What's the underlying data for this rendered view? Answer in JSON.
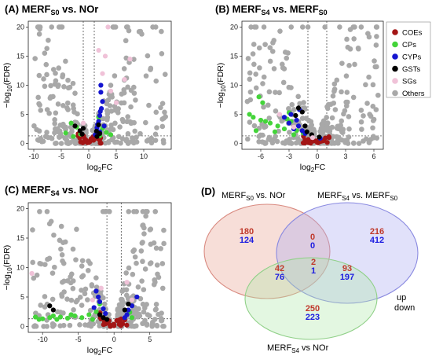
{
  "chart_data": [
    {
      "type": "scatter",
      "id": "A",
      "title": "(A) MERF",
      "title_sub": "S0",
      "title_rest": " vs. NOr",
      "xlabel": "log",
      "xlabel_sub": "2",
      "xlabel_rest": "FC",
      "ylabel": "−log",
      "ylabel_sub": "10",
      "ylabel_rest": "(FDR)",
      "xlim": [
        -11,
        15
      ],
      "ylim": [
        -1,
        21
      ],
      "xticks": [
        -10,
        -5,
        0,
        5,
        10
      ],
      "yticks": [
        0,
        5,
        10,
        15,
        20
      ],
      "vlines": [
        -1,
        1
      ],
      "hline": 1.3,
      "seed": 11,
      "groups": [
        {
          "category": "Others",
          "shape": "vee",
          "x_left": [
            -10,
            -0.5
          ],
          "x_right": [
            0.5,
            14
          ],
          "count": 320,
          "max_y": 20
        },
        {
          "category": "COEs",
          "cluster": true,
          "x_range": [
            -2,
            2.5
          ],
          "count": 28,
          "max_y": 2.2
        },
        {
          "category": "CPs",
          "points": [
            [
              -3.2,
              3.5
            ],
            [
              -2.8,
              1.2
            ],
            [
              -1.5,
              1.6
            ],
            [
              2.5,
              2.6
            ],
            [
              3.2,
              1.9
            ],
            [
              1.8,
              4.5
            ],
            [
              -2.2,
              2.8
            ],
            [
              4,
              1.5
            ],
            [
              -4.2,
              1.8
            ],
            [
              2,
              1.3
            ]
          ]
        },
        {
          "category": "CYPs",
          "points": [
            [
              2.2,
              10
            ],
            [
              2.2,
              8.8
            ],
            [
              2.5,
              7.2
            ],
            [
              2.3,
              6
            ],
            [
              2,
              4.8
            ],
            [
              1.8,
              3.8
            ],
            [
              1.5,
              2.7
            ],
            [
              2,
              2
            ],
            [
              1.2,
              1.5
            ],
            [
              2.8,
              3
            ],
            [
              1.6,
              3.3
            ],
            [
              2.1,
              5.5
            ]
          ]
        },
        {
          "category": "GSTs",
          "points": [
            [
              -2.5,
              3
            ],
            [
              -1.6,
              2.2
            ],
            [
              -1.2,
              1.6
            ],
            [
              1.4,
              2.1
            ],
            [
              2,
              1.7
            ],
            [
              1.8,
              3.2
            ],
            [
              -1,
              2.6
            ],
            [
              1.5,
              1.2
            ]
          ]
        },
        {
          "category": "SGs",
          "points": [
            [
              1.8,
              16
            ],
            [
              3,
              15
            ],
            [
              7.5,
              14.5
            ],
            [
              2.5,
              12
            ],
            [
              6.5,
              11
            ],
            [
              4,
              9
            ],
            [
              3.5,
              20
            ],
            [
              -1,
              3.5
            ],
            [
              5,
              7
            ]
          ]
        }
      ]
    },
    {
      "type": "scatter",
      "id": "B",
      "title": "(B) MERF",
      "title_sub": "S4",
      "title_rest": " vs. MERF",
      "title_sub2": "S0",
      "xlabel": "log",
      "xlabel_sub": "2",
      "xlabel_rest": "FC",
      "ylabel": "−log",
      "ylabel_sub": "10",
      "ylabel_rest": "(FDR)",
      "xlim": [
        -8,
        7
      ],
      "ylim": [
        -1,
        21
      ],
      "xticks": [
        -6,
        -3,
        0,
        3,
        6
      ],
      "yticks": [
        0,
        5,
        10,
        15,
        20
      ],
      "vlines": [
        -1,
        1
      ],
      "hline": 1.3,
      "seed": 23,
      "groups": [
        {
          "category": "Others",
          "shape": "vee",
          "x_left": [
            -7.5,
            -0.3
          ],
          "x_right": [
            0.3,
            6.5
          ],
          "count": 300,
          "max_y": 20
        },
        {
          "category": "COEs",
          "cluster": true,
          "x_range": [
            -1.5,
            1.5
          ],
          "count": 25,
          "max_y": 1.8
        },
        {
          "category": "CPs",
          "points": [
            [
              -7.2,
              5
            ],
            [
              -6.8,
              4.5
            ],
            [
              -6,
              4
            ],
            [
              -5.5,
              3.8
            ],
            [
              -5,
              3.5
            ],
            [
              -4.2,
              3
            ],
            [
              -3.5,
              2.5
            ],
            [
              -3.2,
              4.2
            ],
            [
              -2.8,
              3.8
            ],
            [
              -2.2,
              2.2
            ],
            [
              -1.5,
              1.8
            ],
            [
              -6.5,
              2.2
            ],
            [
              -5.8,
              7
            ],
            [
              -6.2,
              8
            ],
            [
              -3,
              5.3
            ],
            [
              -4.5,
              2
            ],
            [
              -2.5,
              1.5
            ]
          ]
        },
        {
          "category": "CYPs",
          "points": [
            [
              -3.5,
              4.5
            ],
            [
              -2.8,
              5
            ],
            [
              -2.2,
              4
            ],
            [
              -2,
              3
            ],
            [
              -1.6,
              2.2
            ],
            [
              -3,
              3.5
            ],
            [
              -1.9,
              5.8
            ],
            [
              -1.3,
              1.7
            ],
            [
              0.3,
              0.9
            ],
            [
              -2.5,
              2.5
            ]
          ]
        },
        {
          "category": "GSTs",
          "points": [
            [
              -2,
              6.1
            ],
            [
              -1.6,
              5.4
            ],
            [
              -1.3,
              3
            ],
            [
              -1.1,
              2
            ],
            [
              0.2,
              1.1
            ],
            [
              -0.6,
              1.5
            ],
            [
              -2.3,
              4.8
            ]
          ]
        },
        {
          "category": "SGs",
          "points": [
            [
              -4,
              5
            ],
            [
              -2.5,
              2.8
            ],
            [
              -0.5,
              1
            ]
          ]
        }
      ]
    },
    {
      "type": "scatter",
      "id": "C",
      "title": "(C) MERF",
      "title_sub": "S4",
      "title_rest": " vs. NOr",
      "xlabel": "log",
      "xlabel_sub": "2",
      "xlabel_rest": "FC",
      "ylabel": "−log",
      "ylabel_sub": "10",
      "ylabel_rest": "(FDR)",
      "xlim": [
        -12,
        8
      ],
      "ylim": [
        -1,
        21
      ],
      "xticks": [
        -10,
        -5,
        0,
        5
      ],
      "yticks": [
        0,
        5,
        10,
        15,
        20
      ],
      "vlines": [
        -1,
        1
      ],
      "hline": 1.3,
      "seed": 37,
      "groups": [
        {
          "category": "Others",
          "shape": "vee",
          "x_left": [
            -11.5,
            -0.5
          ],
          "x_right": [
            0.5,
            7
          ],
          "count": 300,
          "max_y": 19.5
        },
        {
          "category": "COEs",
          "cluster": true,
          "x_range": [
            -2,
            2
          ],
          "count": 24,
          "max_y": 2.5
        },
        {
          "category": "CPs",
          "points": [
            [
              -11,
              1.6
            ],
            [
              -10,
              1.3
            ],
            [
              -9,
              1.5
            ],
            [
              -8,
              1.2
            ],
            [
              -7.5,
              1.6
            ],
            [
              -6.5,
              1.4
            ],
            [
              -5.5,
              1.8
            ],
            [
              -4.5,
              1.5
            ],
            [
              -3.5,
              2
            ],
            [
              -3,
              1.2
            ],
            [
              -2.5,
              2.5
            ],
            [
              -2,
              3.8
            ],
            [
              2.2,
              2.4
            ],
            [
              2.5,
              1.5
            ],
            [
              -6,
              2
            ],
            [
              -8.5,
              1.8
            ],
            [
              -10.5,
              1.2
            ]
          ]
        },
        {
          "category": "CYPs",
          "points": [
            [
              -2.5,
              6
            ],
            [
              -2.2,
              5
            ],
            [
              -2,
              4.2
            ],
            [
              -1.5,
              3
            ],
            [
              -1.2,
              2.2
            ],
            [
              2.5,
              3.5
            ],
            [
              2,
              2.8
            ],
            [
              1.8,
              2
            ],
            [
              3.2,
              5
            ],
            [
              -2.8,
              3.2
            ],
            [
              1.5,
              1.5
            ]
          ]
        },
        {
          "category": "GSTs",
          "points": [
            [
              -9,
              3.5
            ],
            [
              -8.5,
              2.8
            ],
            [
              -2,
              2
            ],
            [
              -1.5,
              1.5
            ],
            [
              1.5,
              2.8
            ],
            [
              2,
              3.8
            ],
            [
              -1,
              1.2
            ]
          ]
        },
        {
          "category": "SGs",
          "points": [
            [
              -11.5,
              9
            ],
            [
              1.8,
              7.5
            ],
            [
              -1.8,
              6.5
            ],
            [
              2.5,
              4.5
            ],
            [
              -3,
              4.5
            ]
          ]
        }
      ]
    },
    {
      "type": "venn",
      "id": "D",
      "panel_label": "(D)",
      "sets": [
        {
          "id": "s0",
          "label": "MERF",
          "label_sub": "S0",
          "label_rest": " vs. NOr",
          "fill": "#e8a090",
          "stroke": "#d98a80"
        },
        {
          "id": "s4s0",
          "label": "MERF",
          "label_sub": "S4",
          "label_rest": " vs. MERF",
          "label_sub2": "S0",
          "fill": "#a8a8f0",
          "stroke": "#8a8ae0"
        },
        {
          "id": "s4",
          "label": "MERF",
          "label_sub": "S4",
          "label_rest": " vs NOr",
          "fill": "#b0e8a8",
          "stroke": "#90d088"
        }
      ],
      "regions": [
        {
          "region": "s0_only",
          "up": 180,
          "down": 124
        },
        {
          "region": "s4s0_only",
          "up": 216,
          "down": 412
        },
        {
          "region": "s0_s4s0",
          "up": 0,
          "down": 0
        },
        {
          "region": "s0_s4",
          "up": 42,
          "down": 76
        },
        {
          "region": "all",
          "up": 2,
          "down": 1
        },
        {
          "region": "s4s0_s4",
          "up": 93,
          "down": 197
        },
        {
          "region": "s4_only",
          "up": 250,
          "down": 223
        }
      ],
      "key": {
        "up": "up",
        "down": "down"
      }
    }
  ],
  "legend": [
    {
      "label": "COEs",
      "color": "#a31515"
    },
    {
      "label": "CPs",
      "color": "#44d43a"
    },
    {
      "label": "CYPs",
      "color": "#1515d0"
    },
    {
      "label": "GSTs",
      "color": "#000000"
    },
    {
      "label": "SGs",
      "color": "#f0c2d8"
    },
    {
      "label": "Others",
      "color": "#a8a8a8"
    }
  ],
  "colors": {
    "up": "#c0392b",
    "down": "#1c1ce0",
    "guide": "#333333"
  }
}
